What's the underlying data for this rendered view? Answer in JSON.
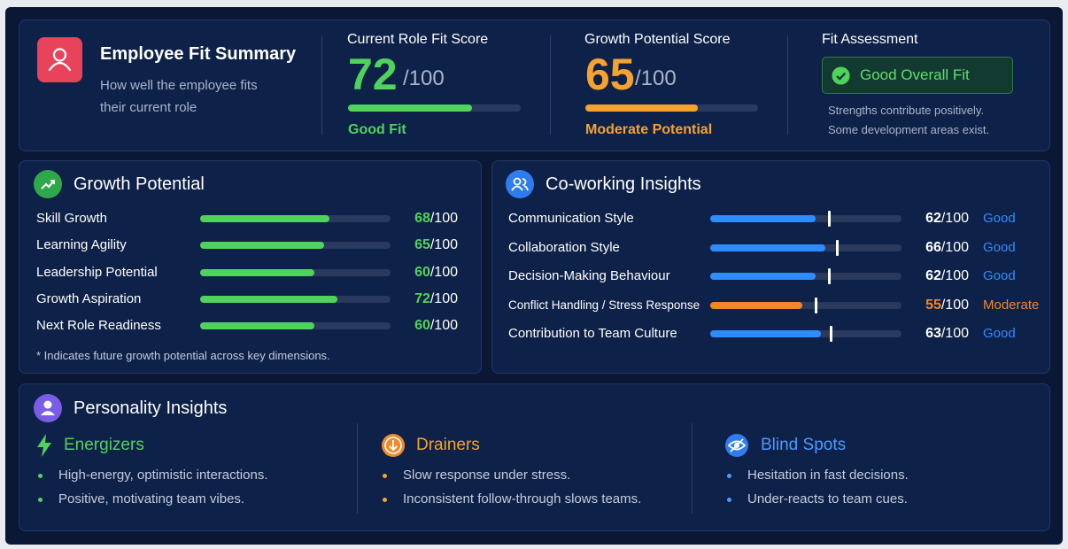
{
  "scale": {
    "max": 100,
    "label": "/100"
  },
  "summary": {
    "title": "Employee Fit Summary",
    "subtitle": "How well the employee fits their current role",
    "role_fit": {
      "label": "Current Role Fit Score",
      "score": 72,
      "status": "Good Fit",
      "color": "#4fd35c"
    },
    "growth": {
      "label": "Growth Potential Score",
      "score": 65,
      "status": "Moderate Potential",
      "color": "#f6a22f"
    },
    "assessment": {
      "label": "Fit Assessment",
      "verdict": "Good Overall Fit",
      "notes": [
        "Strengths contribute positively.",
        "Some development areas exist."
      ]
    }
  },
  "growth_potential": {
    "title": "Growth Potential",
    "color": "#4fd35c",
    "rows": [
      {
        "label": "Skill Growth",
        "score": 68
      },
      {
        "label": "Learning Agility",
        "score": 65
      },
      {
        "label": "Leadership Potential",
        "score": 60
      },
      {
        "label": "Growth Aspiration",
        "score": 72
      },
      {
        "label": "Next Role Readiness",
        "score": 60
      }
    ],
    "footnote": "* Indicates future growth potential across key dimensions."
  },
  "coworking": {
    "title": "Co-working Insights",
    "rows": [
      {
        "label": "Communication Style",
        "score": 62,
        "bar": 55,
        "status": "Good",
        "color": "#2f8cff",
        "score_color": "#ffffff"
      },
      {
        "label": "Collaboration Style",
        "score": 66,
        "bar": 60,
        "status": "Good",
        "color": "#2f8cff",
        "score_color": "#ffffff"
      },
      {
        "label": "Decision-Making Behaviour",
        "score": 62,
        "bar": 55,
        "status": "Good",
        "color": "#2f8cff",
        "score_color": "#ffffff"
      },
      {
        "label": "Conflict Handling / Stress Response",
        "score": 55,
        "bar": 48,
        "status": "Moderate",
        "color": "#f5852a",
        "score_color": "#f5852a"
      },
      {
        "label": "Contribution to Team Culture",
        "score": 63,
        "bar": 58,
        "status": "Good",
        "color": "#2f8cff",
        "score_color": "#ffffff"
      }
    ]
  },
  "personality": {
    "title": "Personality Insights",
    "groups": [
      {
        "title": "Energizers",
        "color": "#4fd35c",
        "items": [
          "High-energy, optimistic interactions.",
          "Positive, motivating team vibes."
        ]
      },
      {
        "title": "Drainers",
        "color": "#f6a22f",
        "items": [
          "Slow response under stress.",
          "Inconsistent follow-through slows teams."
        ]
      },
      {
        "title": "Blind Spots",
        "color": "#4a9bff",
        "items": [
          "Hesitation in fast decisions.",
          "Under-reacts to team cues."
        ]
      }
    ]
  }
}
